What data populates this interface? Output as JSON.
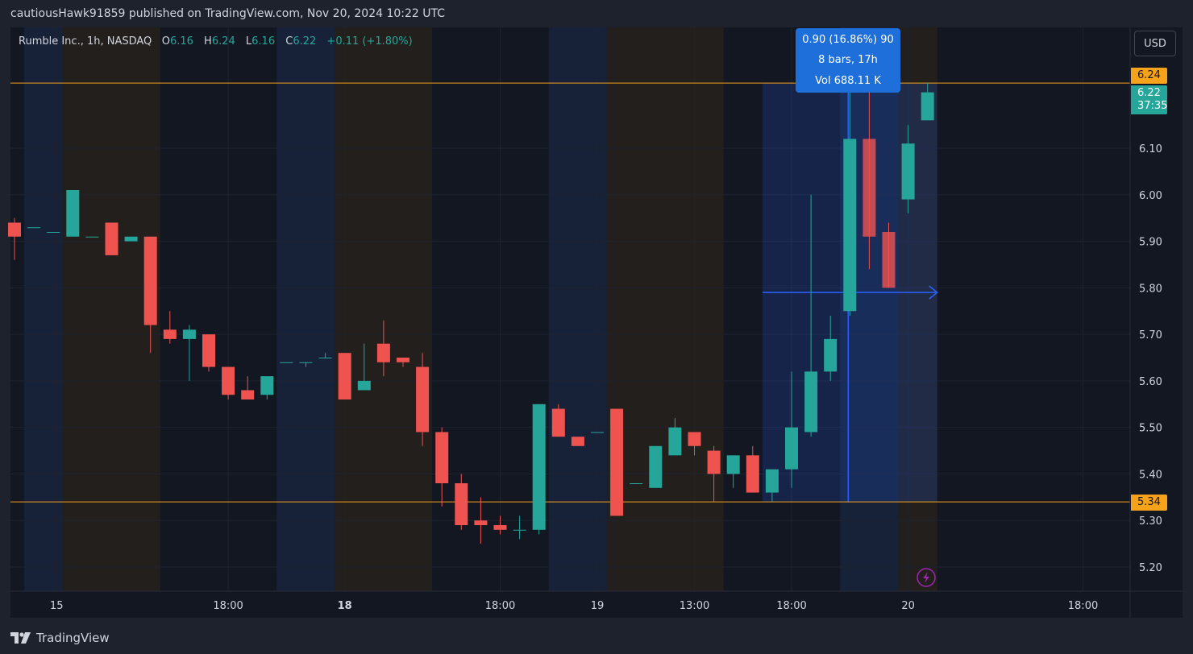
{
  "header": {
    "published_line": "cautiousHawk91859 published on TradingView.com, Nov 20, 2024 10:22 UTC"
  },
  "footer": {
    "brand": "TradingView",
    "logo_icon": "tradingview-logo-icon"
  },
  "currency_button": "USD",
  "legend": {
    "symbol": "Rumble Inc., 1h, NASDAQ",
    "o_label": "O",
    "o_value": "6.16",
    "h_label": "H",
    "h_value": "6.24",
    "l_label": "L",
    "l_value": "6.16",
    "c_label": "C",
    "c_value": "6.22",
    "change": "+0.11 (+1.80%)"
  },
  "measure_tooltip": {
    "line1": "0.90 (16.86%) 90",
    "line2": "8 bars, 17h",
    "line3": "Vol 688.11 K"
  },
  "price_tags": {
    "upper_level": "6.24",
    "lower_level": "5.34",
    "last_price": "6.22",
    "countdown": "37:35"
  },
  "colors": {
    "up": "#26a69a",
    "down": "#ef5350",
    "level_line": "#f7a21b",
    "measure": "#2962ff",
    "background": "#131722",
    "session_blue": "#172238",
    "session_brown": "#221f1d"
  },
  "chart_data": {
    "type": "candlestick",
    "ylim": [
      5.15,
      6.35
    ],
    "y_ticks": [
      5.2,
      5.3,
      5.4,
      5.5,
      5.6,
      5.7,
      5.8,
      5.9,
      6.0,
      6.1
    ],
    "y_tick_labels": [
      "5.20",
      "5.30",
      "5.40",
      "5.50",
      "5.60",
      "5.70",
      "5.80",
      "5.90",
      "6.00",
      "6.10"
    ],
    "x_tick_labels": [
      {
        "label": "15",
        "bar": 2,
        "bold": false
      },
      {
        "label": "18:00",
        "bar": 11,
        "bold": false
      },
      {
        "label": "18",
        "bar": 17,
        "bold": true
      },
      {
        "label": "18:00",
        "bar": 25,
        "bold": false
      },
      {
        "label": "19",
        "bar": 30,
        "bold": false
      },
      {
        "label": "13:00",
        "bar": 35,
        "bold": false
      },
      {
        "label": "18:00",
        "bar": 40,
        "bold": false
      },
      {
        "label": "20",
        "bar": 46,
        "bold": false
      },
      {
        "label": "18:00",
        "bar": 55,
        "bold": false
      }
    ],
    "horizontal_levels": [
      6.24,
      5.34
    ],
    "measure_range": {
      "from_bar": 39,
      "to_bar": 47,
      "from_price": 5.34,
      "to_price": 6.24
    },
    "sessions": [
      {
        "from_bar": 0.5,
        "to_bar": 2.5,
        "kind": "blue"
      },
      {
        "from_bar": 2.5,
        "to_bar": 7.5,
        "kind": "brown"
      },
      {
        "from_bar": 13.5,
        "to_bar": 16.5,
        "kind": "blue"
      },
      {
        "from_bar": 16.5,
        "to_bar": 21.5,
        "kind": "brown"
      },
      {
        "from_bar": 27.5,
        "to_bar": 30.5,
        "kind": "blue"
      },
      {
        "from_bar": 30.5,
        "to_bar": 36.5,
        "kind": "brown"
      },
      {
        "from_bar": 42.5,
        "to_bar": 45.5,
        "kind": "blue"
      },
      {
        "from_bar": 45.5,
        "to_bar": 47.5,
        "kind": "brown"
      }
    ],
    "candles": [
      {
        "o": 5.94,
        "h": 5.95,
        "l": 5.86,
        "c": 5.91
      },
      {
        "o": 5.93,
        "h": 5.93,
        "l": 5.93,
        "c": 5.93
      },
      {
        "o": 5.92,
        "h": 5.92,
        "l": 5.92,
        "c": 5.92
      },
      {
        "o": 5.91,
        "h": 6.01,
        "l": 5.91,
        "c": 6.01
      },
      {
        "o": 5.91,
        "h": 5.91,
        "l": 5.91,
        "c": 5.91
      },
      {
        "o": 5.94,
        "h": 5.94,
        "l": 5.87,
        "c": 5.87
      },
      {
        "o": 5.9,
        "h": 5.91,
        "l": 5.9,
        "c": 5.91
      },
      {
        "o": 5.91,
        "h": 5.91,
        "l": 5.66,
        "c": 5.72
      },
      {
        "o": 5.71,
        "h": 5.75,
        "l": 5.68,
        "c": 5.69
      },
      {
        "o": 5.69,
        "h": 5.72,
        "l": 5.6,
        "c": 5.71
      },
      {
        "o": 5.7,
        "h": 5.7,
        "l": 5.62,
        "c": 5.63
      },
      {
        "o": 5.63,
        "h": 5.63,
        "l": 5.56,
        "c": 5.57
      },
      {
        "o": 5.58,
        "h": 5.61,
        "l": 5.56,
        "c": 5.56
      },
      {
        "o": 5.57,
        "h": 5.61,
        "l": 5.56,
        "c": 5.61
      },
      {
        "o": 5.64,
        "h": 5.64,
        "l": 5.64,
        "c": 5.64
      },
      {
        "o": 5.64,
        "h": 5.64,
        "l": 5.63,
        "c": 5.64
      },
      {
        "o": 5.65,
        "h": 5.66,
        "l": 5.65,
        "c": 5.65
      },
      {
        "o": 5.66,
        "h": 5.66,
        "l": 5.56,
        "c": 5.56
      },
      {
        "o": 5.58,
        "h": 5.68,
        "l": 5.58,
        "c": 5.6
      },
      {
        "o": 5.68,
        "h": 5.73,
        "l": 5.61,
        "c": 5.64
      },
      {
        "o": 5.65,
        "h": 5.65,
        "l": 5.63,
        "c": 5.64
      },
      {
        "o": 5.63,
        "h": 5.66,
        "l": 5.46,
        "c": 5.49
      },
      {
        "o": 5.49,
        "h": 5.5,
        "l": 5.33,
        "c": 5.38
      },
      {
        "o": 5.38,
        "h": 5.4,
        "l": 5.28,
        "c": 5.29
      },
      {
        "o": 5.3,
        "h": 5.35,
        "l": 5.25,
        "c": 5.29
      },
      {
        "o": 5.29,
        "h": 5.31,
        "l": 5.27,
        "c": 5.28
      },
      {
        "o": 5.28,
        "h": 5.31,
        "l": 5.26,
        "c": 5.28
      },
      {
        "o": 5.28,
        "h": 5.55,
        "l": 5.27,
        "c": 5.55
      },
      {
        "o": 5.54,
        "h": 5.55,
        "l": 5.48,
        "c": 5.48
      },
      {
        "o": 5.48,
        "h": 5.48,
        "l": 5.46,
        "c": 5.46
      },
      {
        "o": 5.49,
        "h": 5.49,
        "l": 5.49,
        "c": 5.49
      },
      {
        "o": 5.54,
        "h": 5.54,
        "l": 5.31,
        "c": 5.31
      },
      {
        "o": 5.38,
        "h": 5.38,
        "l": 5.38,
        "c": 5.38
      },
      {
        "o": 5.37,
        "h": 5.46,
        "l": 5.37,
        "c": 5.46
      },
      {
        "o": 5.44,
        "h": 5.52,
        "l": 5.44,
        "c": 5.5
      },
      {
        "o": 5.49,
        "h": 5.49,
        "l": 5.44,
        "c": 5.46
      },
      {
        "o": 5.45,
        "h": 5.46,
        "l": 5.34,
        "c": 5.4
      },
      {
        "o": 5.4,
        "h": 5.44,
        "l": 5.37,
        "c": 5.44
      },
      {
        "o": 5.44,
        "h": 5.46,
        "l": 5.36,
        "c": 5.36
      },
      {
        "o": 5.36,
        "h": 5.41,
        "l": 5.34,
        "c": 5.41
      },
      {
        "o": 5.41,
        "h": 5.62,
        "l": 5.37,
        "c": 5.5
      },
      {
        "o": 5.49,
        "h": 6.0,
        "l": 5.48,
        "c": 5.62
      },
      {
        "o": 5.62,
        "h": 5.74,
        "l": 5.6,
        "c": 5.69
      },
      {
        "o": 5.75,
        "h": 6.22,
        "l": 5.74,
        "c": 6.12
      },
      {
        "o": 6.12,
        "h": 6.23,
        "l": 5.84,
        "c": 5.91
      },
      {
        "o": 5.92,
        "h": 5.94,
        "l": 5.8,
        "c": 5.8
      },
      {
        "o": 5.99,
        "h": 6.15,
        "l": 5.96,
        "c": 6.11
      },
      {
        "o": 6.16,
        "h": 6.24,
        "l": 6.16,
        "c": 6.22
      }
    ]
  }
}
